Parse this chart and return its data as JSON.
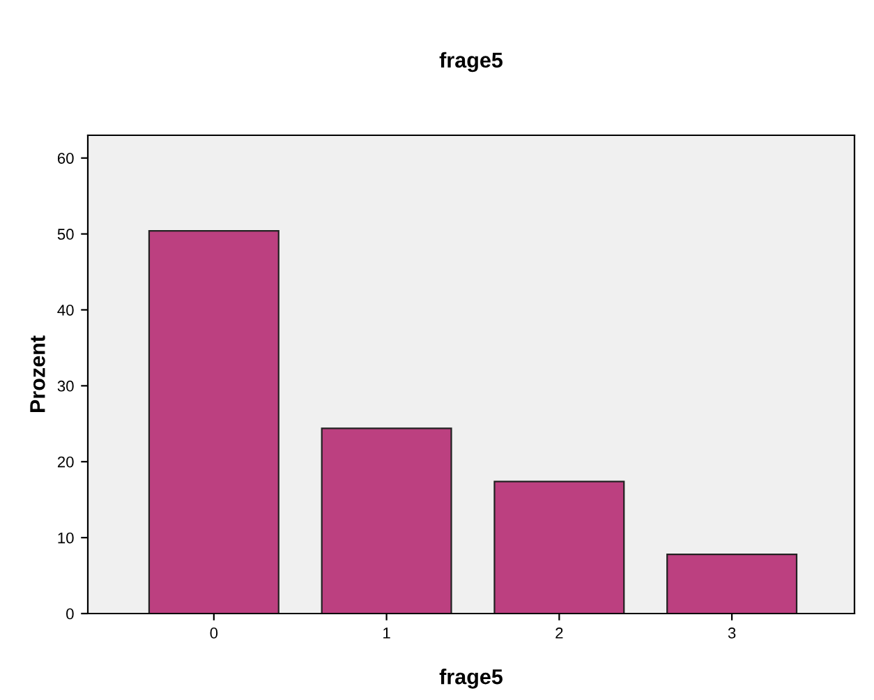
{
  "chart_data": {
    "type": "bar",
    "title": "frage5",
    "xlabel": "frage5",
    "ylabel": "Prozent",
    "categories": [
      "0",
      "1",
      "2",
      "3"
    ],
    "values": [
      50.4,
      24.4,
      17.4,
      7.8
    ],
    "color": "#bc4080",
    "ylim": [
      0,
      63
    ],
    "yticks": [
      0,
      10,
      20,
      30,
      40,
      50,
      60
    ],
    "grid": false,
    "legend": false
  }
}
